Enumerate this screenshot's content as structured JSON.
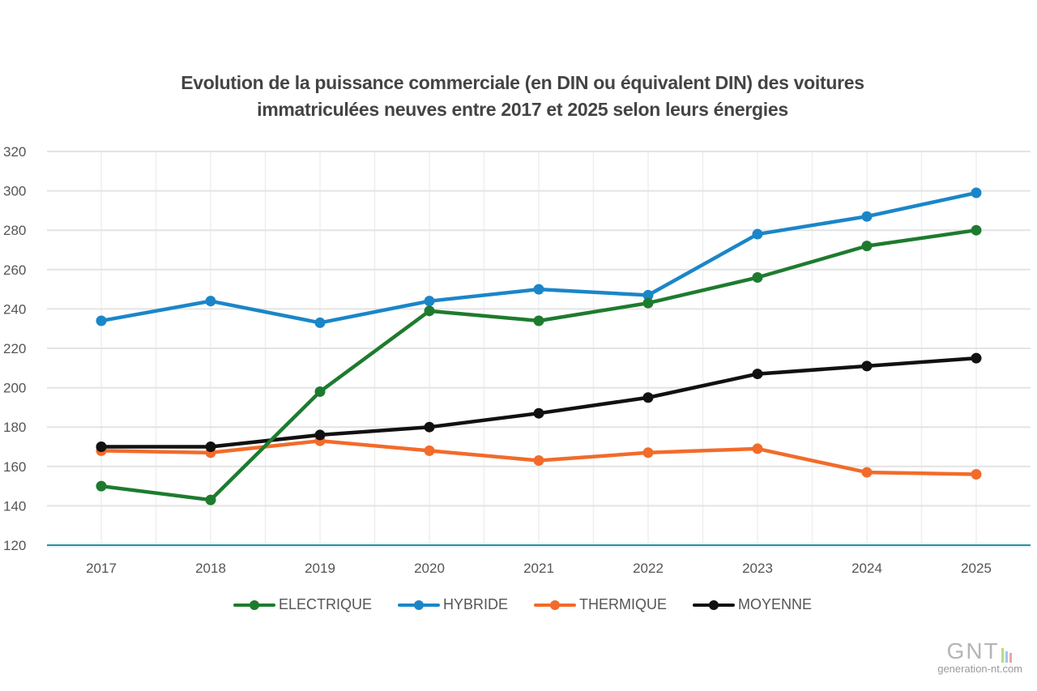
{
  "chart_data": {
    "type": "line",
    "title_lines": [
      "Evolution de la puissance commerciale (en DIN ou équivalent DIN) des voitures",
      "immatriculées neuves entre 2017 et 2025 selon leurs énergies"
    ],
    "xlabel": "",
    "ylabel": "",
    "categories": [
      "2017",
      "2018",
      "2019",
      "2020",
      "2021",
      "2022",
      "2023",
      "2024",
      "2025"
    ],
    "ylim": [
      120,
      320
    ],
    "yticks": [
      "120",
      "140",
      "160",
      "180",
      "200",
      "220",
      "240",
      "260",
      "280",
      "300",
      "320"
    ],
    "grid": true,
    "legend_position": "bottom",
    "series": [
      {
        "name": "ELECTRIQUE",
        "color": "#1e7b2e",
        "values": [
          150,
          143,
          198,
          239,
          234,
          243,
          256,
          272,
          280
        ]
      },
      {
        "name": "HYBRIDE",
        "color": "#1a86c8",
        "values": [
          234,
          244,
          233,
          244,
          250,
          247,
          278,
          287,
          299
        ]
      },
      {
        "name": "THERMIQUE",
        "color": "#f26b2a",
        "values": [
          168,
          167,
          173,
          168,
          163,
          167,
          169,
          157,
          156
        ]
      },
      {
        "name": "MOYENNE",
        "color": "#111111",
        "values": [
          170,
          170,
          176,
          180,
          187,
          195,
          207,
          211,
          215
        ]
      }
    ],
    "baseline_color": "#2f8fa0"
  },
  "watermark": {
    "logo_text": "GNT",
    "url": "generation-nt.com",
    "bar_colors": [
      "#b9d98f",
      "#9ec9e8",
      "#f0a3a3"
    ]
  }
}
